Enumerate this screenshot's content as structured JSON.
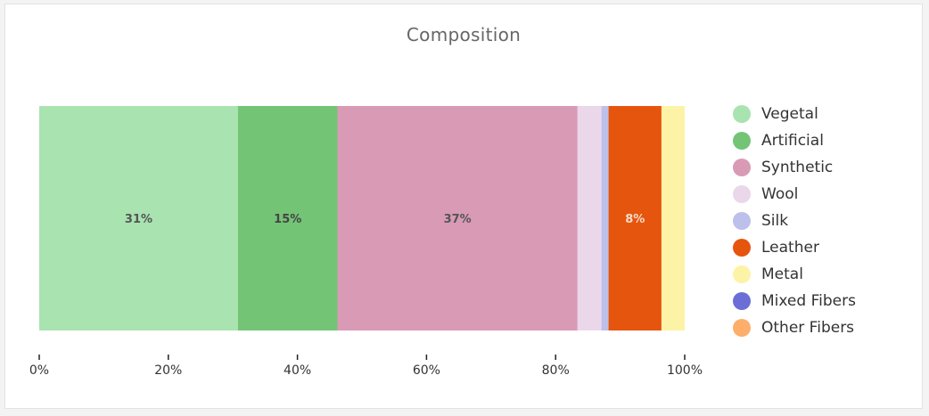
{
  "chart_data": {
    "type": "bar",
    "orientation": "horizontal-stacked-100",
    "title": "Composition",
    "xlim": [
      0,
      100
    ],
    "x_ticks": [
      "0%",
      "20%",
      "40%",
      "60%",
      "80%",
      "100%"
    ],
    "series": [
      {
        "name": "Vegetal",
        "value": 30.8,
        "color": "#a8e3b0",
        "label": "31%",
        "label_color": "#555555"
      },
      {
        "name": "Artificial",
        "value": 15.4,
        "color": "#74c476",
        "label": "15%",
        "label_color": "#444444"
      },
      {
        "name": "Synthetic",
        "value": 37.2,
        "color": "#d99ab6",
        "label": "37%",
        "label_color": "#555555"
      },
      {
        "name": "Wool",
        "value": 3.7,
        "color": "#ead7ea",
        "label": "",
        "label_color": "#555555"
      },
      {
        "name": "Silk",
        "value": 1.1,
        "color": "#bcc0ea",
        "label": "",
        "label_color": "#555555"
      },
      {
        "name": "Leather",
        "value": 8.2,
        "color": "#e6550d",
        "label": "8%",
        "label_color": "#f4dccb"
      },
      {
        "name": "Metal",
        "value": 3.6,
        "color": "#fdf3a6",
        "label": "",
        "label_color": "#555555"
      },
      {
        "name": "Mixed Fibers",
        "value": 0,
        "color": "#6b6ed6",
        "label": "",
        "label_color": "#555555"
      },
      {
        "name": "Other Fibers",
        "value": 0,
        "color": "#fdae6b",
        "label": "",
        "label_color": "#555555"
      }
    ],
    "legend_position": "right",
    "grid": false
  }
}
